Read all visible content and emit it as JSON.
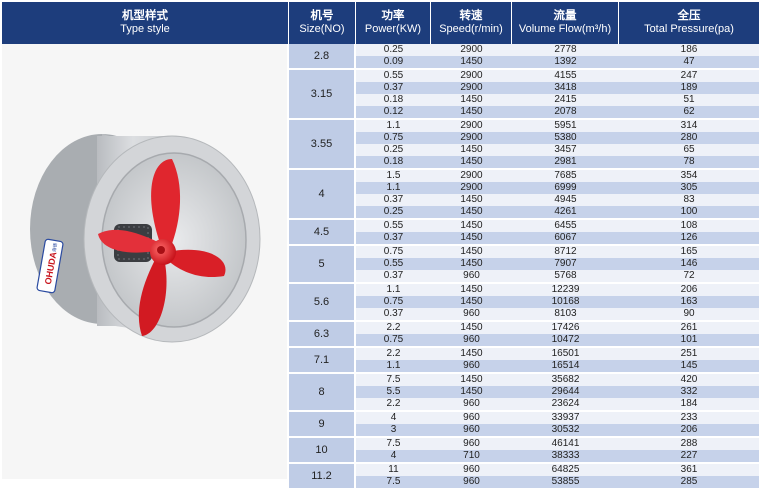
{
  "header": {
    "type_zh": "机型样式",
    "type_en": "Type style",
    "size_zh": "机号",
    "size_en": "Size(NO)",
    "power_zh": "功率",
    "power_en": "Power(KW)",
    "speed_zh": "转速",
    "speed_en": "Speed(r/min)",
    "flow_zh": "流量",
    "flow_en": "Volume Flow(m³/h)",
    "pressure_zh": "全压",
    "pressure_en": "Total Pressure(pa)"
  },
  "photo": {
    "logo_text": "OHUDA",
    "logo_mark": "海德"
  },
  "groups": [
    {
      "size": "2.8",
      "rows": [
        [
          "0.25",
          "2900",
          "2778",
          "186"
        ],
        [
          "0.09",
          "1450",
          "1392",
          "47"
        ]
      ]
    },
    {
      "size": "3.15",
      "rows": [
        [
          "0.55",
          "2900",
          "4155",
          "247"
        ],
        [
          "0.37",
          "2900",
          "3418",
          "189"
        ],
        [
          "0.18",
          "1450",
          "2415",
          "51"
        ],
        [
          "0.12",
          "1450",
          "2078",
          "62"
        ]
      ]
    },
    {
      "size": "3.55",
      "rows": [
        [
          "1.1",
          "2900",
          "5951",
          "314"
        ],
        [
          "0.75",
          "2900",
          "5380",
          "280"
        ],
        [
          "0.25",
          "1450",
          "3457",
          "65"
        ],
        [
          "0.18",
          "1450",
          "2981",
          "78"
        ]
      ]
    },
    {
      "size": "4",
      "rows": [
        [
          "1.5",
          "2900",
          "7685",
          "354"
        ],
        [
          "1.1",
          "2900",
          "6999",
          "305"
        ],
        [
          "0.37",
          "1450",
          "4945",
          "83"
        ],
        [
          "0.25",
          "1450",
          "4261",
          "100"
        ]
      ]
    },
    {
      "size": "4.5",
      "rows": [
        [
          "0.55",
          "1450",
          "6455",
          "108"
        ],
        [
          "0.37",
          "1450",
          "6067",
          "126"
        ]
      ]
    },
    {
      "size": "5",
      "rows": [
        [
          "0.75",
          "1450",
          "8712",
          "165"
        ],
        [
          "0.55",
          "1450",
          "7907",
          "146"
        ],
        [
          "0.37",
          "960",
          "5768",
          "72"
        ]
      ]
    },
    {
      "size": "5.6",
      "rows": [
        [
          "1.1",
          "1450",
          "12239",
          "206"
        ],
        [
          "0.75",
          "1450",
          "10168",
          "163"
        ],
        [
          "0.37",
          "960",
          "8103",
          "90"
        ]
      ]
    },
    {
      "size": "6.3",
      "rows": [
        [
          "2.2",
          "1450",
          "17426",
          "261"
        ],
        [
          "0.75",
          "960",
          "10472",
          "101"
        ]
      ]
    },
    {
      "size": "7.1",
      "rows": [
        [
          "2.2",
          "1450",
          "16501",
          "251"
        ],
        [
          "1.1",
          "960",
          "16514",
          "145"
        ]
      ]
    },
    {
      "size": "8",
      "rows": [
        [
          "7.5",
          "1450",
          "35682",
          "420"
        ],
        [
          "5.5",
          "1450",
          "29644",
          "332"
        ],
        [
          "2.2",
          "960",
          "23624",
          "184"
        ]
      ]
    },
    {
      "size": "9",
      "rows": [
        [
          "4",
          "960",
          "33937",
          "233"
        ],
        [
          "3",
          "960",
          "30532",
          "206"
        ]
      ]
    },
    {
      "size": "10",
      "rows": [
        [
          "7.5",
          "960",
          "46141",
          "288"
        ],
        [
          "4",
          "710",
          "38333",
          "227"
        ]
      ]
    },
    {
      "size": "11.2",
      "rows": [
        [
          "11",
          "960",
          "64825",
          "361"
        ],
        [
          "7.5",
          "960",
          "53855",
          "285"
        ]
      ]
    }
  ]
}
